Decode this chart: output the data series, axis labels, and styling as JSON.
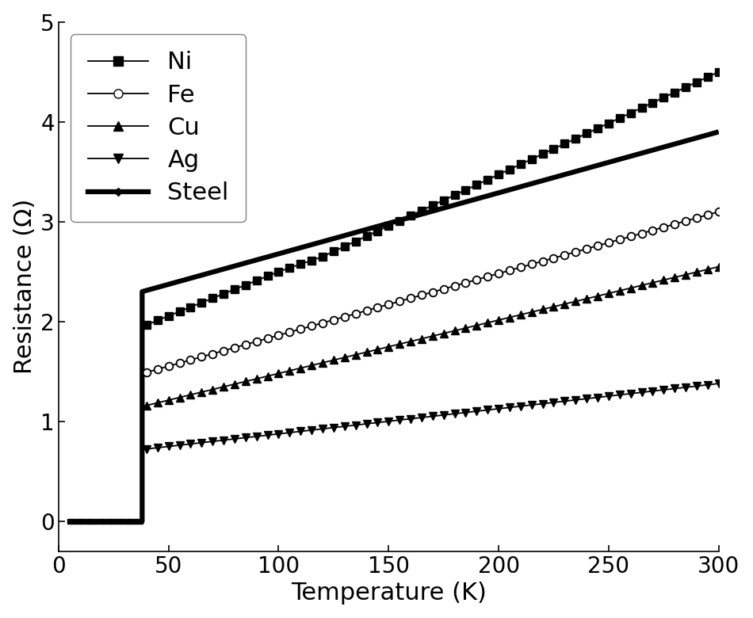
{
  "title": "",
  "xlabel": "Temperature (K)",
  "ylabel": "Resistance (Ω)",
  "xlim": [
    0,
    300
  ],
  "ylim": [
    -0.3,
    5.0
  ],
  "xticks": [
    0,
    50,
    100,
    150,
    200,
    250,
    300
  ],
  "yticks": [
    0,
    1,
    2,
    3,
    4,
    5
  ],
  "background_color": "#ffffff",
  "Tc": 38.0,
  "legend_fontsize": 22,
  "axis_label_fontsize": 22,
  "tick_fontsize": 20,
  "legend_loc": "upper left",
  "ni_start": 1.95,
  "ni_step": 2.3,
  "ni_end": 4.5,
  "fe_start": 1.48,
  "fe_end": 3.1,
  "cu_start": 1.15,
  "cu_end": 2.55,
  "ag_start": 0.72,
  "ag_end": 1.38,
  "steel_start": 2.3,
  "steel_end": 3.9,
  "ni_kink_T": 120.0,
  "ni_kink_shift": 0.15
}
